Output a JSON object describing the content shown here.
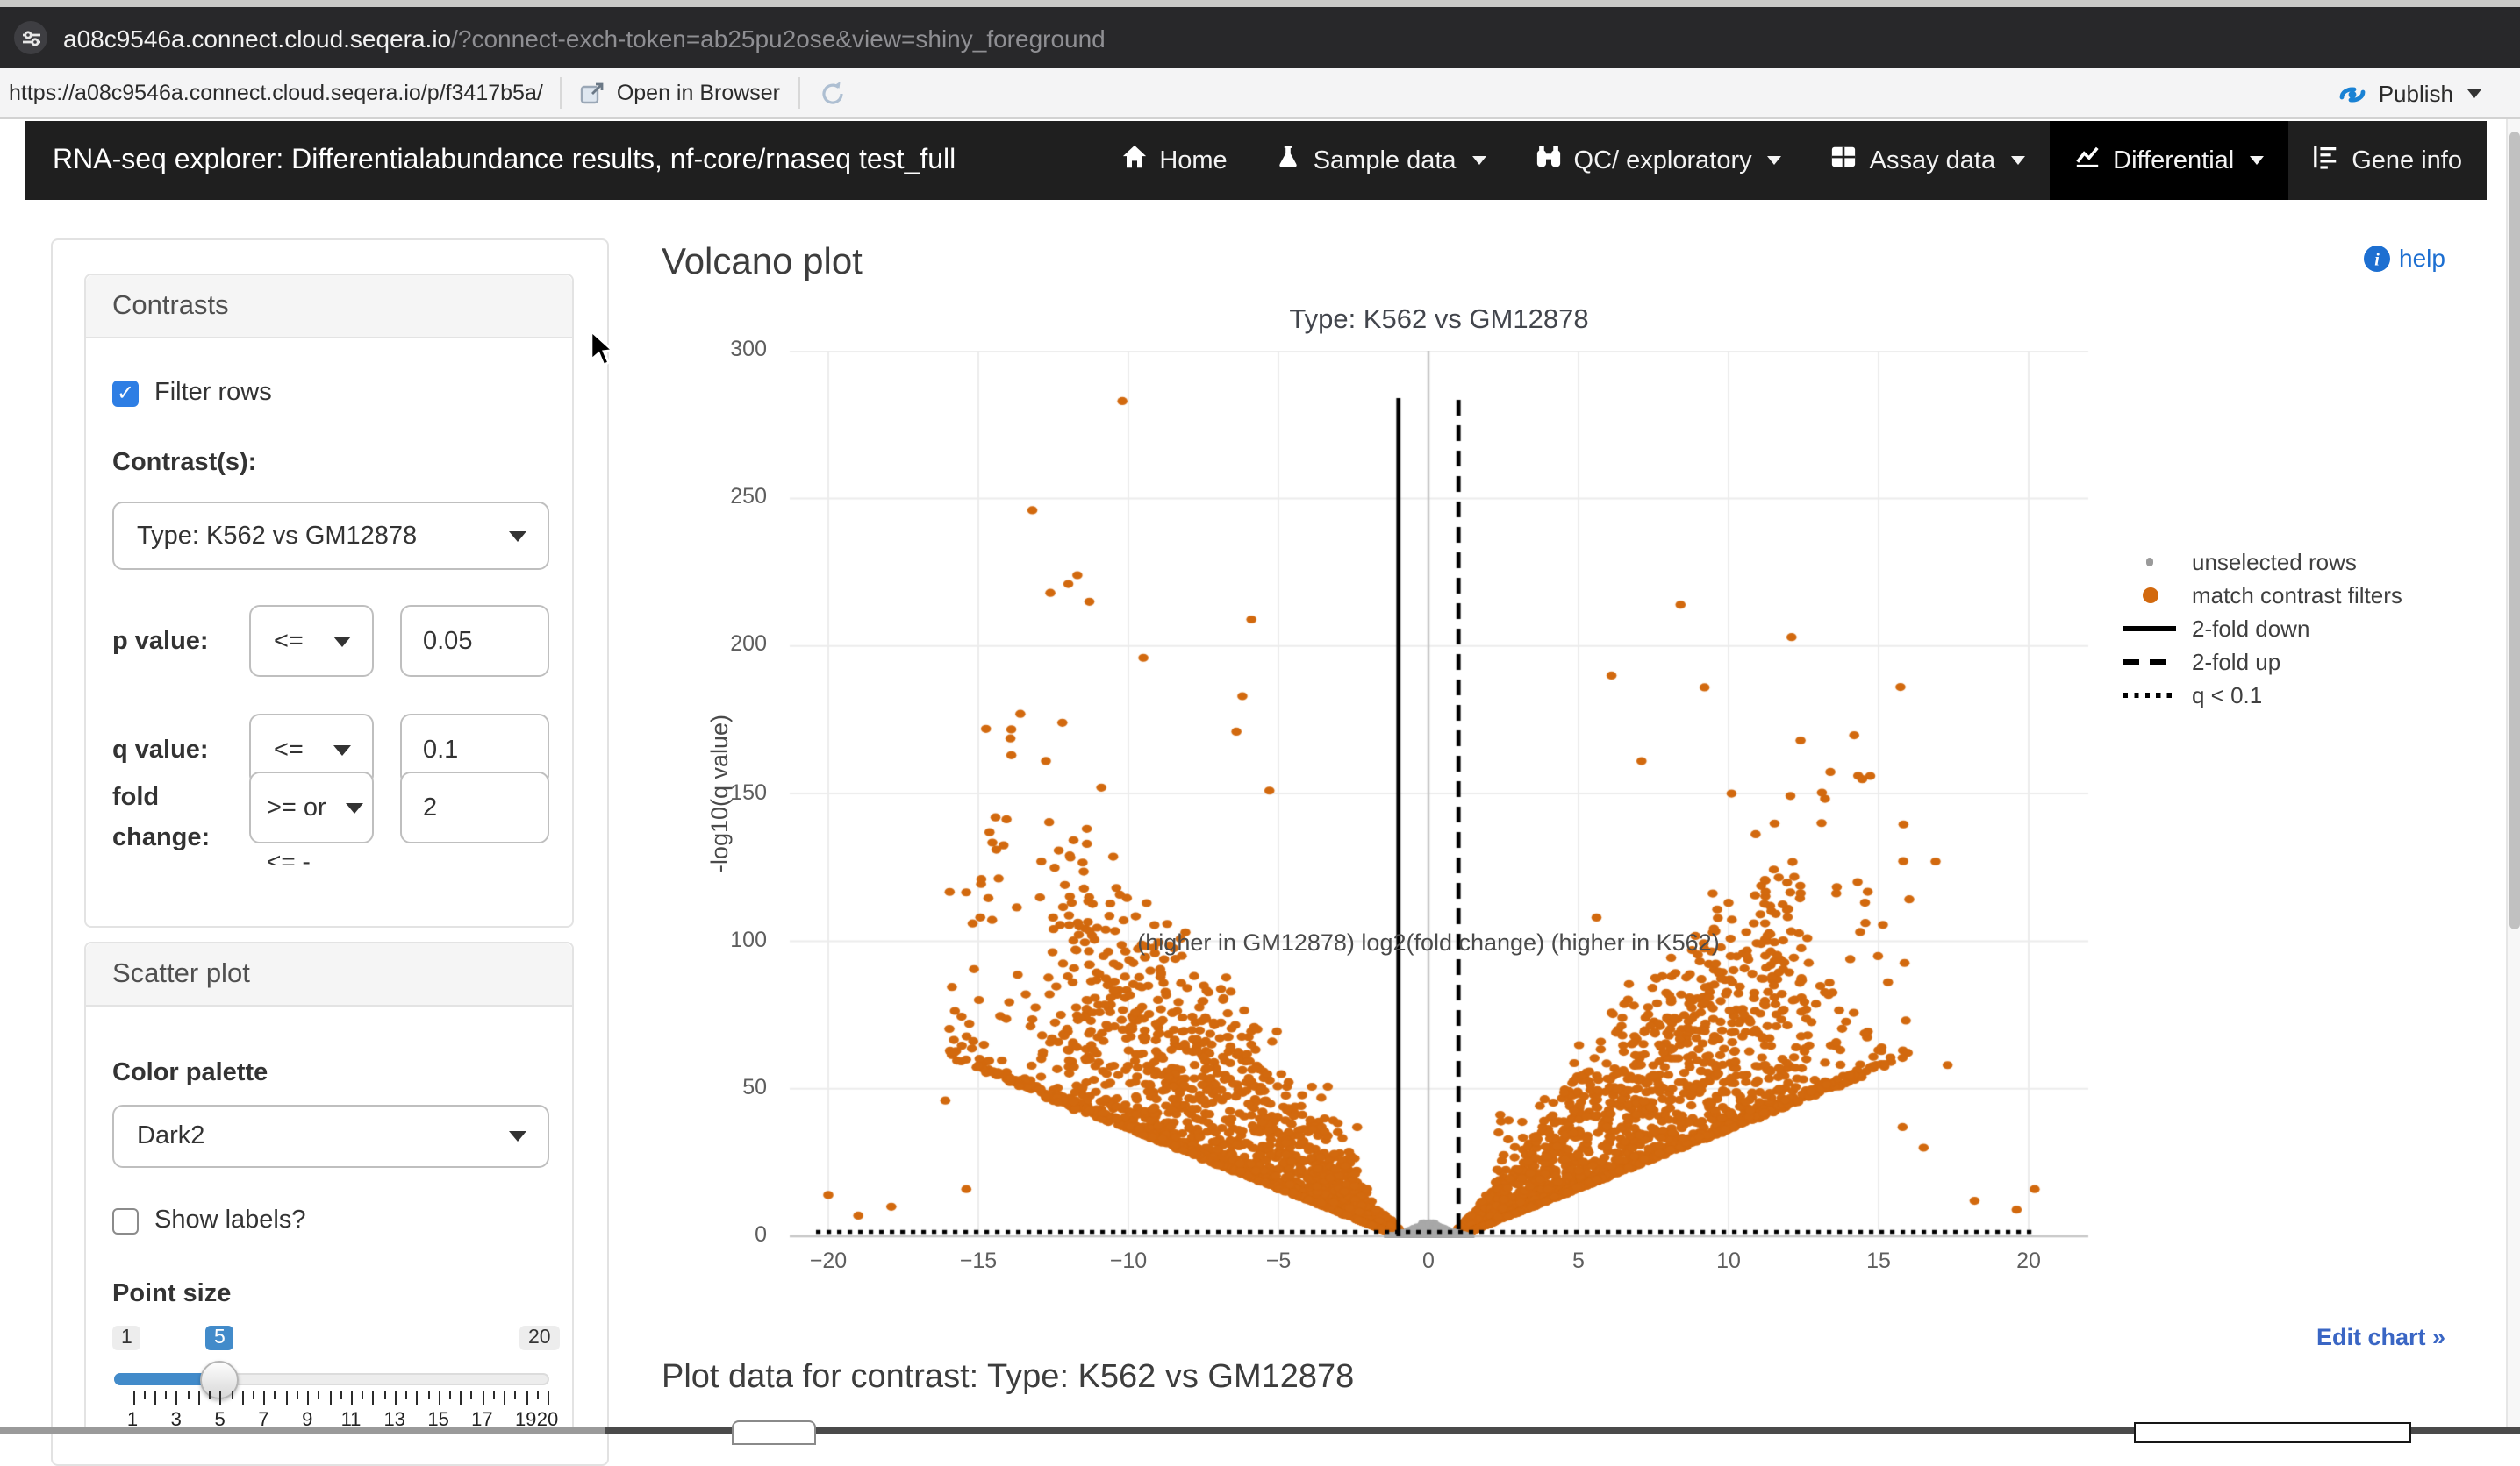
{
  "browser": {
    "url_host": "a08c9546a.connect.cloud.seqera.io",
    "url_params": "/?connect-exch-token=ab25pu2ose&view=shiny_foreground",
    "toolbar_url": "https://a08c9546a.connect.cloud.seqera.io/p/f3417b5a/",
    "open_in_browser": "Open in Browser",
    "publish": "Publish"
  },
  "navbar": {
    "title": "RNA-seq explorer: Differentialabundance results, nf-core/rnaseq test_full",
    "items": [
      {
        "label": "Home",
        "icon": "home",
        "caret": false,
        "active": false
      },
      {
        "label": "Sample data",
        "icon": "flask",
        "caret": true,
        "active": false
      },
      {
        "label": "QC/ exploratory",
        "icon": "binoculars",
        "caret": true,
        "active": false
      },
      {
        "label": "Assay data",
        "icon": "table",
        "caret": true,
        "active": false
      },
      {
        "label": "Differential",
        "icon": "chart-line",
        "caret": true,
        "active": true
      },
      {
        "label": "Gene info",
        "icon": "list",
        "caret": false,
        "active": false
      }
    ]
  },
  "sidebar": {
    "contrasts": {
      "title": "Contrasts",
      "filter_rows_label": "Filter rows",
      "filter_rows_checked": true,
      "contrast_label": "Contrast(s):",
      "contrast_value": "Type: K562 vs GM12878",
      "p_label": "p value:",
      "p_op": "<=",
      "p_value": "0.05",
      "q_label": "q value:",
      "q_op": "<=",
      "q_value": "0.1",
      "fold_label_1": "fold",
      "fold_label_2": "change:",
      "fold_op": ">= or",
      "fold_op_overflow": "<= -",
      "fold_value": "2"
    },
    "scatter": {
      "title": "Scatter plot",
      "palette_label": "Color palette",
      "palette_value": "Dark2",
      "show_labels_label": "Show labels?",
      "show_labels_checked": false,
      "point_size_label": "Point size",
      "slider": {
        "min": 1,
        "max": 20,
        "value": 5,
        "min_label": "1",
        "cur_label": "5",
        "max_label": "20",
        "number_ticks": [
          1,
          3,
          5,
          7,
          9,
          11,
          13,
          15,
          17,
          19,
          20
        ]
      }
    }
  },
  "main": {
    "heading": "Volcano plot",
    "help_label": "help",
    "edit_chart": "Edit chart »",
    "plot_data_heading": "Plot data for contrast: Type: K562 vs GM12878"
  },
  "chart_data": {
    "type": "scatter",
    "title": "Type: K562 vs GM12878",
    "xlabel": "(higher in GM12878)  log2(fold change)  (higher in K562)",
    "ylabel": "-log10(q value)",
    "xlim": [
      -21.6,
      22.3
    ],
    "ylim": [
      0,
      300
    ],
    "x_ticks": [
      -20,
      -15,
      -10,
      -5,
      0,
      5,
      10,
      15,
      20
    ],
    "y_ticks": [
      0,
      50,
      100,
      150,
      200,
      250,
      300
    ],
    "grid": true,
    "legend_position": "right",
    "legend": [
      {
        "symbol": "dot-gray",
        "label": "unselected rows"
      },
      {
        "symbol": "dot-orange",
        "label": "match contrast filters"
      },
      {
        "symbol": "line-solid",
        "label": "2-fold down"
      },
      {
        "symbol": "line-dashed",
        "label": "2-fold up"
      },
      {
        "symbol": "line-dotted",
        "label": "q < 0.1"
      }
    ],
    "thresholds": {
      "fold_down_x": -1,
      "fold_up_x": 1,
      "q_line_y": 1.5
    },
    "colors": {
      "selected": "#d2690e",
      "unselected": "#a8a8a8",
      "grid": "#ececec",
      "zero_line": "#c7c7c7"
    },
    "generation": {
      "seed": 1337,
      "arm_points_per_side": 2400,
      "edge_points_per_side": 320,
      "cloud_points_per_side": 430,
      "gray_points": 680,
      "arm_slope": 4.0,
      "x_tail_power": 2.6,
      "x_tail_scale": 15,
      "gray_y_max": 4.6
    },
    "outlier_points": [
      [
        -10.2,
        283
      ],
      [
        -13.2,
        246
      ],
      [
        -11.7,
        224
      ],
      [
        -12.0,
        221
      ],
      [
        -12.6,
        218
      ],
      [
        -11.3,
        215
      ],
      [
        -5.9,
        209
      ],
      [
        -9.5,
        196
      ],
      [
        -6.2,
        183
      ],
      [
        -13.6,
        177
      ],
      [
        -12.2,
        174
      ],
      [
        -6.4,
        171
      ],
      [
        -13.9,
        163
      ],
      [
        -10.9,
        152
      ],
      [
        -5.3,
        151
      ],
      [
        -14.4,
        131
      ],
      [
        -12.9,
        127
      ],
      [
        -14.9,
        121
      ],
      [
        -10.4,
        118
      ],
      [
        -8.1,
        103
      ],
      [
        -15.3,
        72
      ],
      [
        -16.1,
        46
      ],
      [
        -20.0,
        14
      ],
      [
        -15.4,
        16
      ],
      [
        -17.9,
        10
      ],
      [
        -19.0,
        7
      ],
      [
        8.4,
        214
      ],
      [
        12.1,
        203
      ],
      [
        6.1,
        190
      ],
      [
        9.2,
        186
      ],
      [
        12.4,
        168
      ],
      [
        7.1,
        161
      ],
      [
        10.1,
        150
      ],
      [
        13.1,
        140
      ],
      [
        16.9,
        127
      ],
      [
        14.3,
        120
      ],
      [
        10.0,
        113
      ],
      [
        5.6,
        108
      ],
      [
        11.3,
        102
      ],
      [
        15.8,
        37
      ],
      [
        16.5,
        30
      ],
      [
        20.2,
        16
      ],
      [
        19.6,
        9
      ],
      [
        18.2,
        12
      ],
      [
        17.3,
        58
      ],
      [
        15.1,
        64
      ]
    ]
  }
}
